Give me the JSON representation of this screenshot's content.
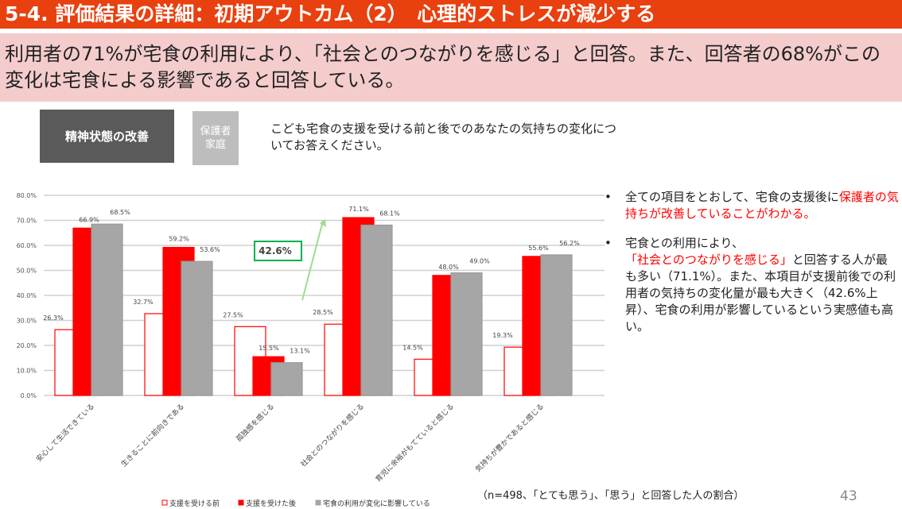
{
  "title": "5-4. 評価結果の詳細：初期アウトカム（2）　心理的ストレスが減少する",
  "summary": "利用者の71%が宅食の利用により、「社会とのつながりを感じる」と回答。また、回答者の68%がこの変化は宅食による影響であると回答している。",
  "tags": {
    "category": "精神状態の改善",
    "respondent": "保護者家庭"
  },
  "question": "こども宅食の支援を受ける前と後でのあなたの気持ちの変化についてお答えください。",
  "bullets": [
    {
      "parts": [
        {
          "t": "全ての項目をとおして、宅食の支援後に"
        },
        {
          "t": "保護者の気持ちが改善していることがわかる。",
          "red": true
        }
      ]
    },
    {
      "parts": [
        {
          "t": "宅食との利用により、"
        },
        {
          "t": "「社会とのつながりを感じる」",
          "red": true
        },
        {
          "t": "と回答する人が最も多い（71.1%）。また、本項目が支援前後での利用者の気持ちの変化量が最も大きく（42.6%上昇）、宅食の利用が影響しているという実感値も高い。"
        }
      ]
    }
  ],
  "note": "（n=498、「とても思う」、「思う」と回答した人の割合）",
  "page_number": "43",
  "colors": {
    "title_bg": "#E8400F",
    "summary_bg": "#F4CCCC",
    "before": "#ff0000",
    "after": "#ff0000",
    "influence": "#a6a6a6",
    "callout": "#00b050"
  },
  "chart_data": {
    "type": "bar",
    "categories": [
      "安心して生活できている",
      "生きることに前向きである",
      "孤独感を感じる",
      "社会とのつながりを感じる",
      "育児に余裕がもてていると感じる",
      "気持ちが豊かであると感じる"
    ],
    "series": [
      {
        "name": "支援を受ける前",
        "values": [
          26.3,
          32.7,
          27.5,
          28.5,
          14.5,
          19.3
        ],
        "style": "outline"
      },
      {
        "name": "支援を受けた後",
        "values": [
          66.9,
          59.2,
          15.5,
          71.1,
          48.0,
          55.6
        ],
        "style": "filled-red"
      },
      {
        "name": "宅食の利用が変化に影響している",
        "values": [
          68.5,
          53.6,
          13.1,
          68.1,
          49.0,
          56.2
        ],
        "style": "filled-gray"
      }
    ],
    "yticks": [
      "0.0%",
      "10.0%",
      "20.0%",
      "30.0%",
      "40.0%",
      "50.0%",
      "60.0%",
      "70.0%",
      "80.0%"
    ],
    "ylim": [
      0,
      80
    ],
    "grid": true,
    "legend": "bottom",
    "annotation": {
      "label": "42.6%",
      "category": "社会とのつながりを感じる"
    }
  }
}
